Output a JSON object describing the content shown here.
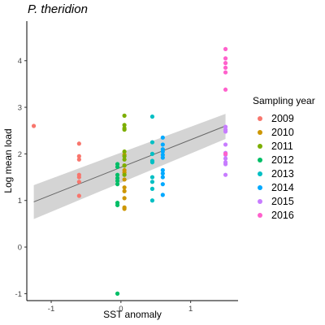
{
  "chart_data": {
    "type": "scatter",
    "title": "P. theridion",
    "xlabel": "SST anomaly",
    "ylabel": "Log mean load",
    "xlim": [
      -1.35,
      1.68
    ],
    "ylim": [
      -1.15,
      4.85
    ],
    "x_ticks": [
      -1,
      0,
      1
    ],
    "x_tick_labels": [
      "-1",
      "0",
      "1"
    ],
    "y_ticks": [
      -1,
      0,
      1,
      2,
      3,
      4
    ],
    "y_tick_labels": [
      "-1",
      "0",
      "1",
      "2",
      "3",
      "4"
    ],
    "grid": false,
    "legend": {
      "title": "Sampling year",
      "position": "right"
    },
    "series": [
      {
        "name": "2009",
        "color": "#F8766D",
        "x": [
          -1.25,
          -0.6,
          -0.6,
          -0.6,
          -0.6,
          -0.6,
          -0.6,
          -0.6
        ],
        "y": [
          2.6,
          2.22,
          1.95,
          1.88,
          1.55,
          1.5,
          1.4,
          1.1
        ]
      },
      {
        "name": "2010",
        "color": "#CD9600",
        "x": [
          0.05,
          0.05,
          0.05,
          0.05,
          0.05,
          0.05,
          0.05,
          0.05,
          0.05,
          0.05
        ],
        "y": [
          1.98,
          1.75,
          1.65,
          1.6,
          1.45,
          1.28,
          1.2,
          1.05,
          0.85,
          0.82
        ]
      },
      {
        "name": "2011",
        "color": "#7CAE00",
        "x": [
          0.05,
          0.05,
          0.05,
          0.05,
          0.05,
          0.05,
          0.05,
          0.05,
          0.05
        ],
        "y": [
          2.82,
          2.62,
          2.55,
          2.52,
          2.05,
          1.95,
          1.88,
          1.75,
          1.55
        ]
      },
      {
        "name": "2012",
        "color": "#00BE67",
        "x": [
          -0.05,
          -0.05,
          -0.05,
          -0.05,
          -0.05,
          -0.05,
          -0.05,
          -0.05,
          -0.05
        ],
        "y": [
          1.78,
          1.72,
          1.55,
          1.48,
          1.42,
          1.35,
          0.95,
          0.9,
          -1.0
        ]
      },
      {
        "name": "2013",
        "color": "#00BFC4",
        "x": [
          0.45,
          0.45,
          0.45,
          0.45,
          0.45,
          0.45,
          0.45,
          0.45,
          0.45
        ],
        "y": [
          2.8,
          2.25,
          2.0,
          1.85,
          1.82,
          1.5,
          1.4,
          1.25,
          1.0
        ]
      },
      {
        "name": "2014",
        "color": "#00A9FF",
        "x": [
          0.6,
          0.6,
          0.6,
          0.6,
          0.6,
          0.6,
          0.6,
          0.6,
          0.6,
          0.6,
          0.6
        ],
        "y": [
          2.35,
          2.2,
          2.1,
          2.05,
          1.98,
          1.92,
          1.65,
          1.58,
          1.5,
          1.35,
          1.12
        ]
      },
      {
        "name": "2015",
        "color": "#C77CFF",
        "x": [
          1.5,
          1.5,
          1.5,
          1.5,
          1.5,
          1.5,
          1.5,
          1.5,
          1.5,
          1.5
        ],
        "y": [
          2.58,
          2.52,
          2.48,
          2.2,
          2.02,
          1.98,
          1.9,
          1.82,
          1.78,
          1.55
        ]
      },
      {
        "name": "2016",
        "color": "#FF61CC",
        "x": [
          1.5,
          1.5,
          1.5,
          1.5,
          1.5,
          1.5,
          1.5,
          1.5
        ],
        "y": [
          4.25,
          4.05,
          3.95,
          3.85,
          3.75,
          3.38,
          2.0,
          2.0
        ]
      }
    ],
    "fit": {
      "type": "linear",
      "x": [
        -1.25,
        1.5
      ],
      "y": [
        0.97,
        2.6
      ],
      "ci_upper": [
        1.33,
        2.86
      ],
      "ci_lower": [
        0.6,
        2.32
      ],
      "color": "#666666",
      "ci_color": "#cccccc"
    }
  }
}
